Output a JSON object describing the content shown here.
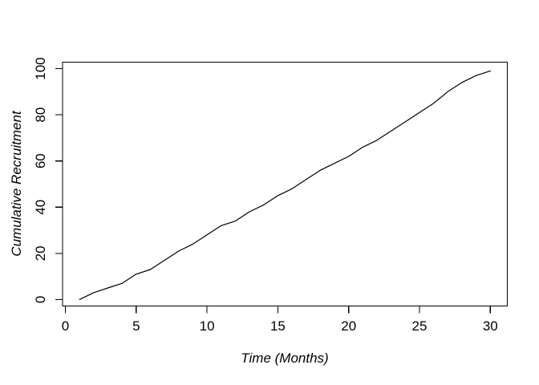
{
  "chart_data": {
    "type": "line",
    "title": "",
    "xlabel": "Time (Months)",
    "ylabel": "Cumulative Recruitment",
    "x": [
      1,
      2,
      3,
      4,
      5,
      6,
      7,
      8,
      9,
      10,
      11,
      12,
      13,
      14,
      15,
      16,
      17,
      18,
      19,
      20,
      21,
      22,
      23,
      24,
      25,
      26,
      27,
      28,
      29,
      30
    ],
    "y": [
      0,
      3,
      5,
      7,
      11,
      13,
      17,
      21,
      24,
      28,
      32,
      34,
      38,
      41,
      45,
      48,
      52,
      56,
      59,
      62,
      66,
      69,
      73,
      77,
      81,
      85,
      90,
      94,
      97,
      99
    ],
    "x_ticks": [
      0,
      5,
      10,
      15,
      20,
      25,
      30
    ],
    "y_ticks": [
      0,
      20,
      40,
      60,
      80,
      100
    ],
    "xlim": [
      -0.2,
      31.2
    ],
    "ylim": [
      -2.8,
      102.8
    ],
    "grid": false,
    "legend": "none",
    "line_color": "#000000",
    "axis_color": "#000000",
    "text_color": "#000000",
    "background": "#ffffff"
  }
}
